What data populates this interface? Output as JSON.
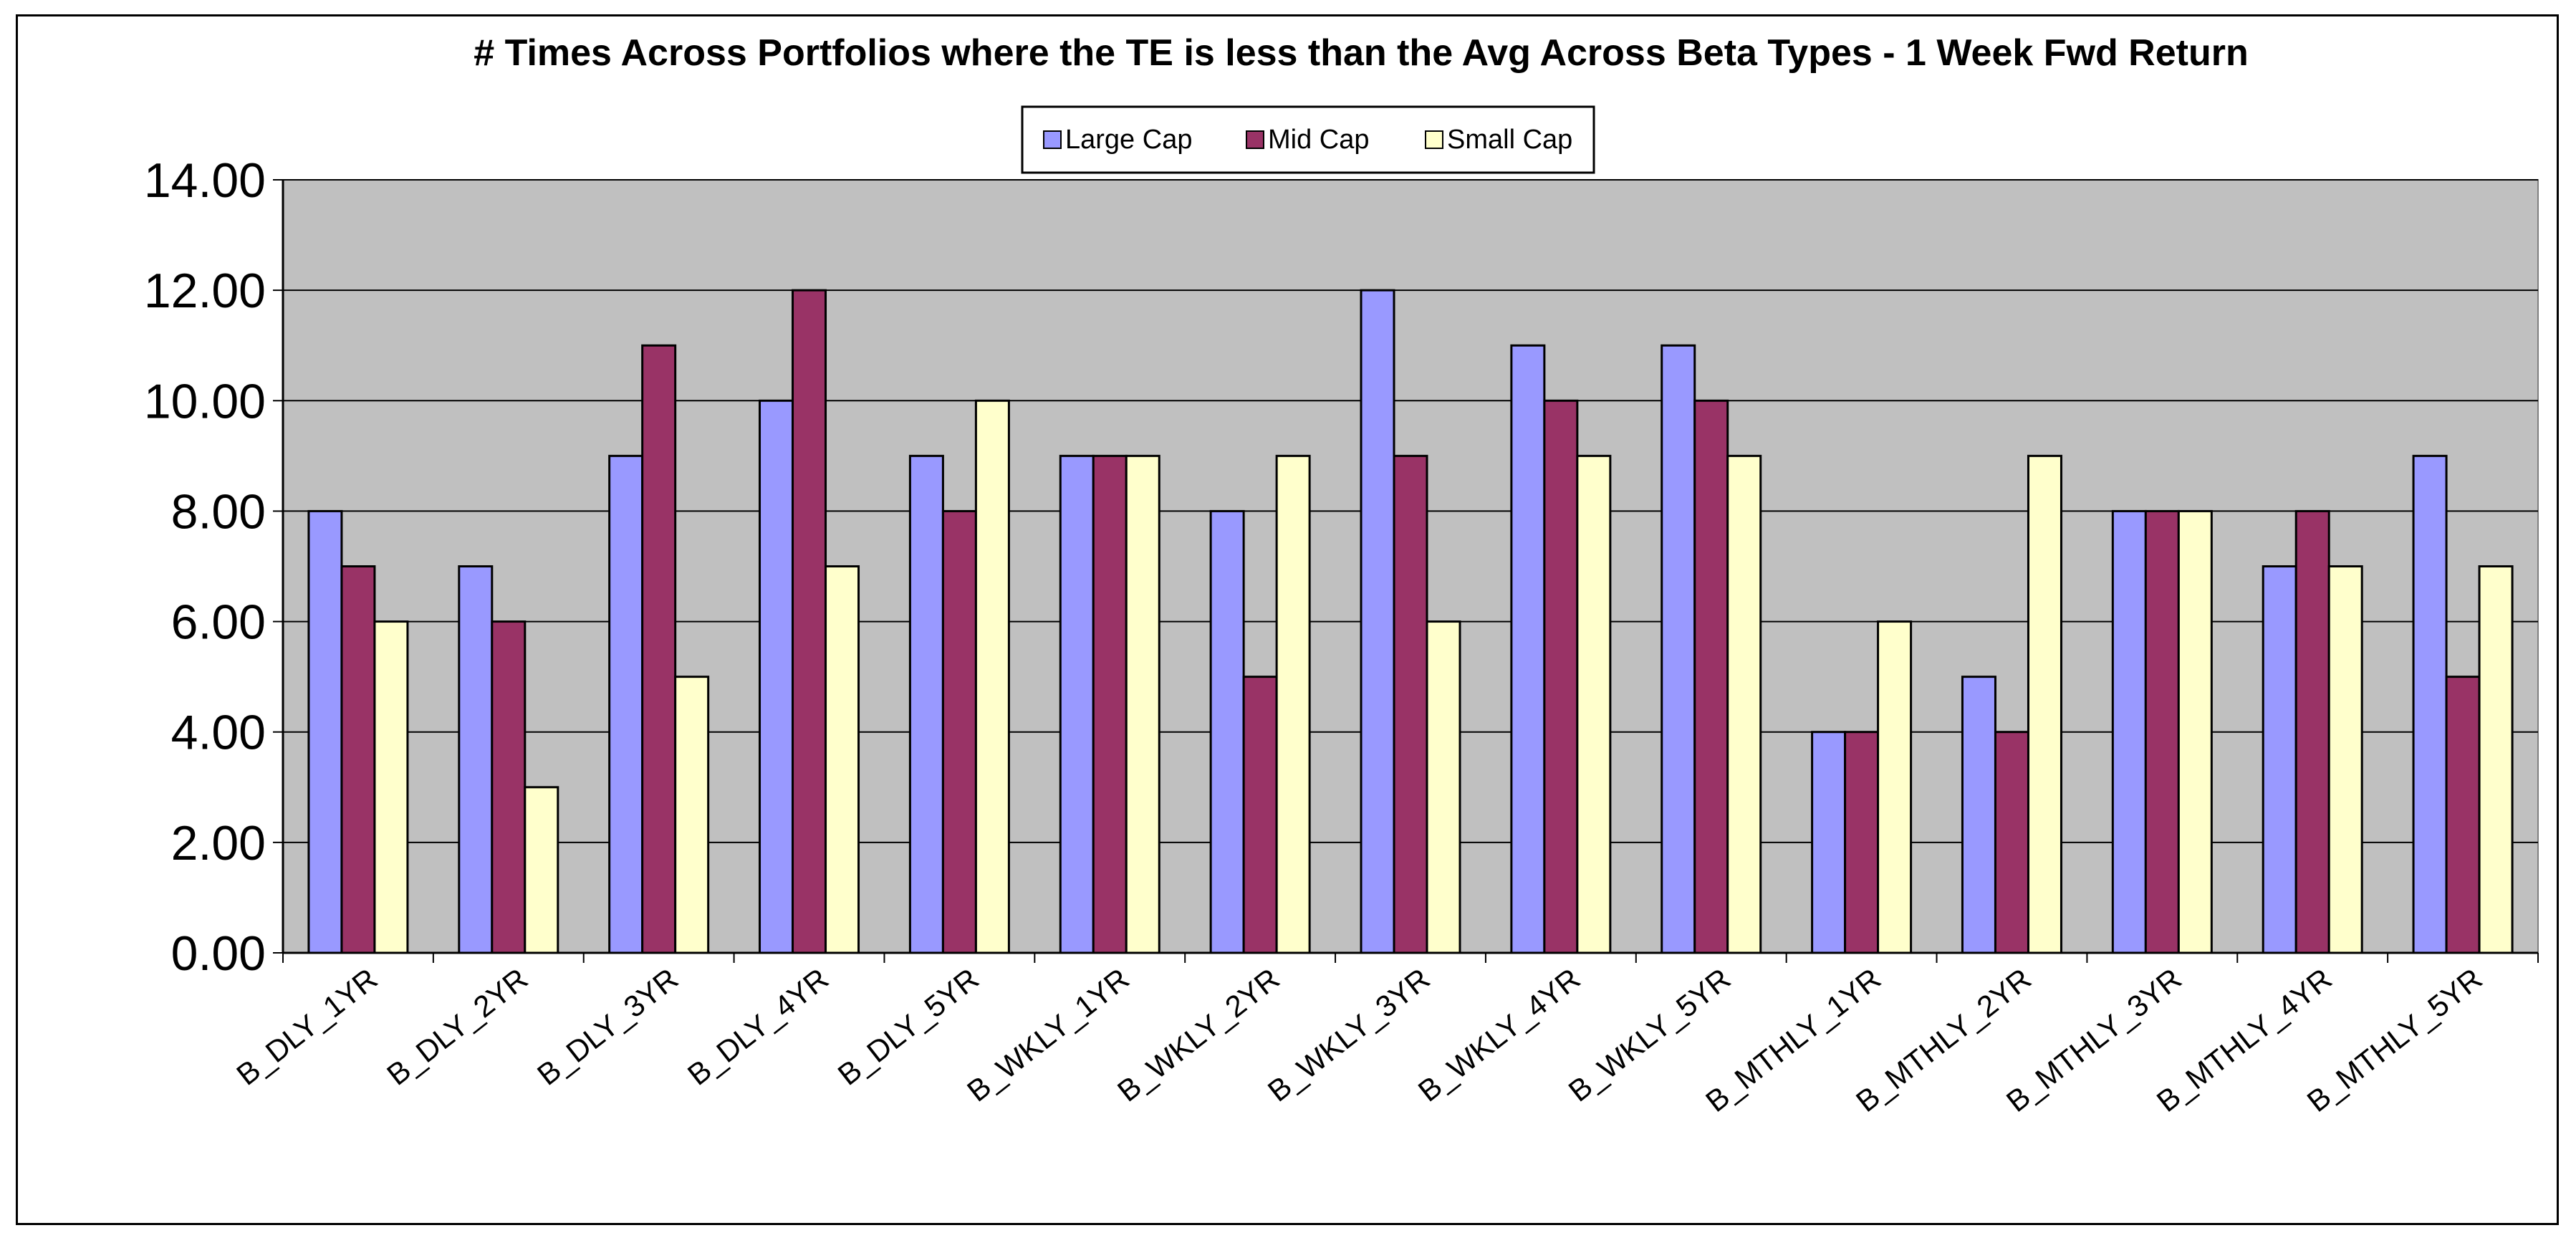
{
  "chart_data": {
    "type": "bar",
    "title": "# Times Across Portfolios where the TE is less than the Avg Across Beta Types - 1 Week Fwd Return",
    "xlabel": "",
    "ylabel": "",
    "ylim": [
      0,
      14
    ],
    "yticks": [
      "0.00",
      "2.00",
      "4.00",
      "6.00",
      "8.00",
      "10.00",
      "12.00",
      "14.00"
    ],
    "grid": true,
    "legend_position": "top-center",
    "categories": [
      "B_DLY_1YR",
      "B_DLY_2YR",
      "B_DLY_3YR",
      "B_DLY_4YR",
      "B_DLY_5YR",
      "B_WKLY_1YR",
      "B_WKLY_2YR",
      "B_WKLY_3YR",
      "B_WKLY_4YR",
      "B_WKLY_5YR",
      "B_MTHLY_1YR",
      "B_MTHLY_2YR",
      "B_MTHLY_3YR",
      "B_MTHLY_4YR",
      "B_MTHLY_5YR"
    ],
    "series": [
      {
        "name": "Large Cap",
        "color": "#9999FF",
        "values": [
          8,
          7,
          9,
          10,
          9,
          9,
          8,
          12,
          11,
          11,
          4,
          5,
          8,
          7,
          9
        ]
      },
      {
        "name": "Mid Cap",
        "color": "#993366",
        "values": [
          7,
          6,
          11,
          12,
          8,
          9,
          5,
          9,
          10,
          10,
          4,
          4,
          8,
          8,
          5
        ]
      },
      {
        "name": "Small Cap",
        "color": "#FFFFCC",
        "values": [
          6,
          3,
          5,
          7,
          10,
          9,
          9,
          6,
          9,
          9,
          6,
          9,
          8,
          7,
          7
        ]
      }
    ]
  },
  "colors": {
    "plot_background": "#C0C0C0",
    "gridline": "#000000",
    "frame": "#000000"
  }
}
